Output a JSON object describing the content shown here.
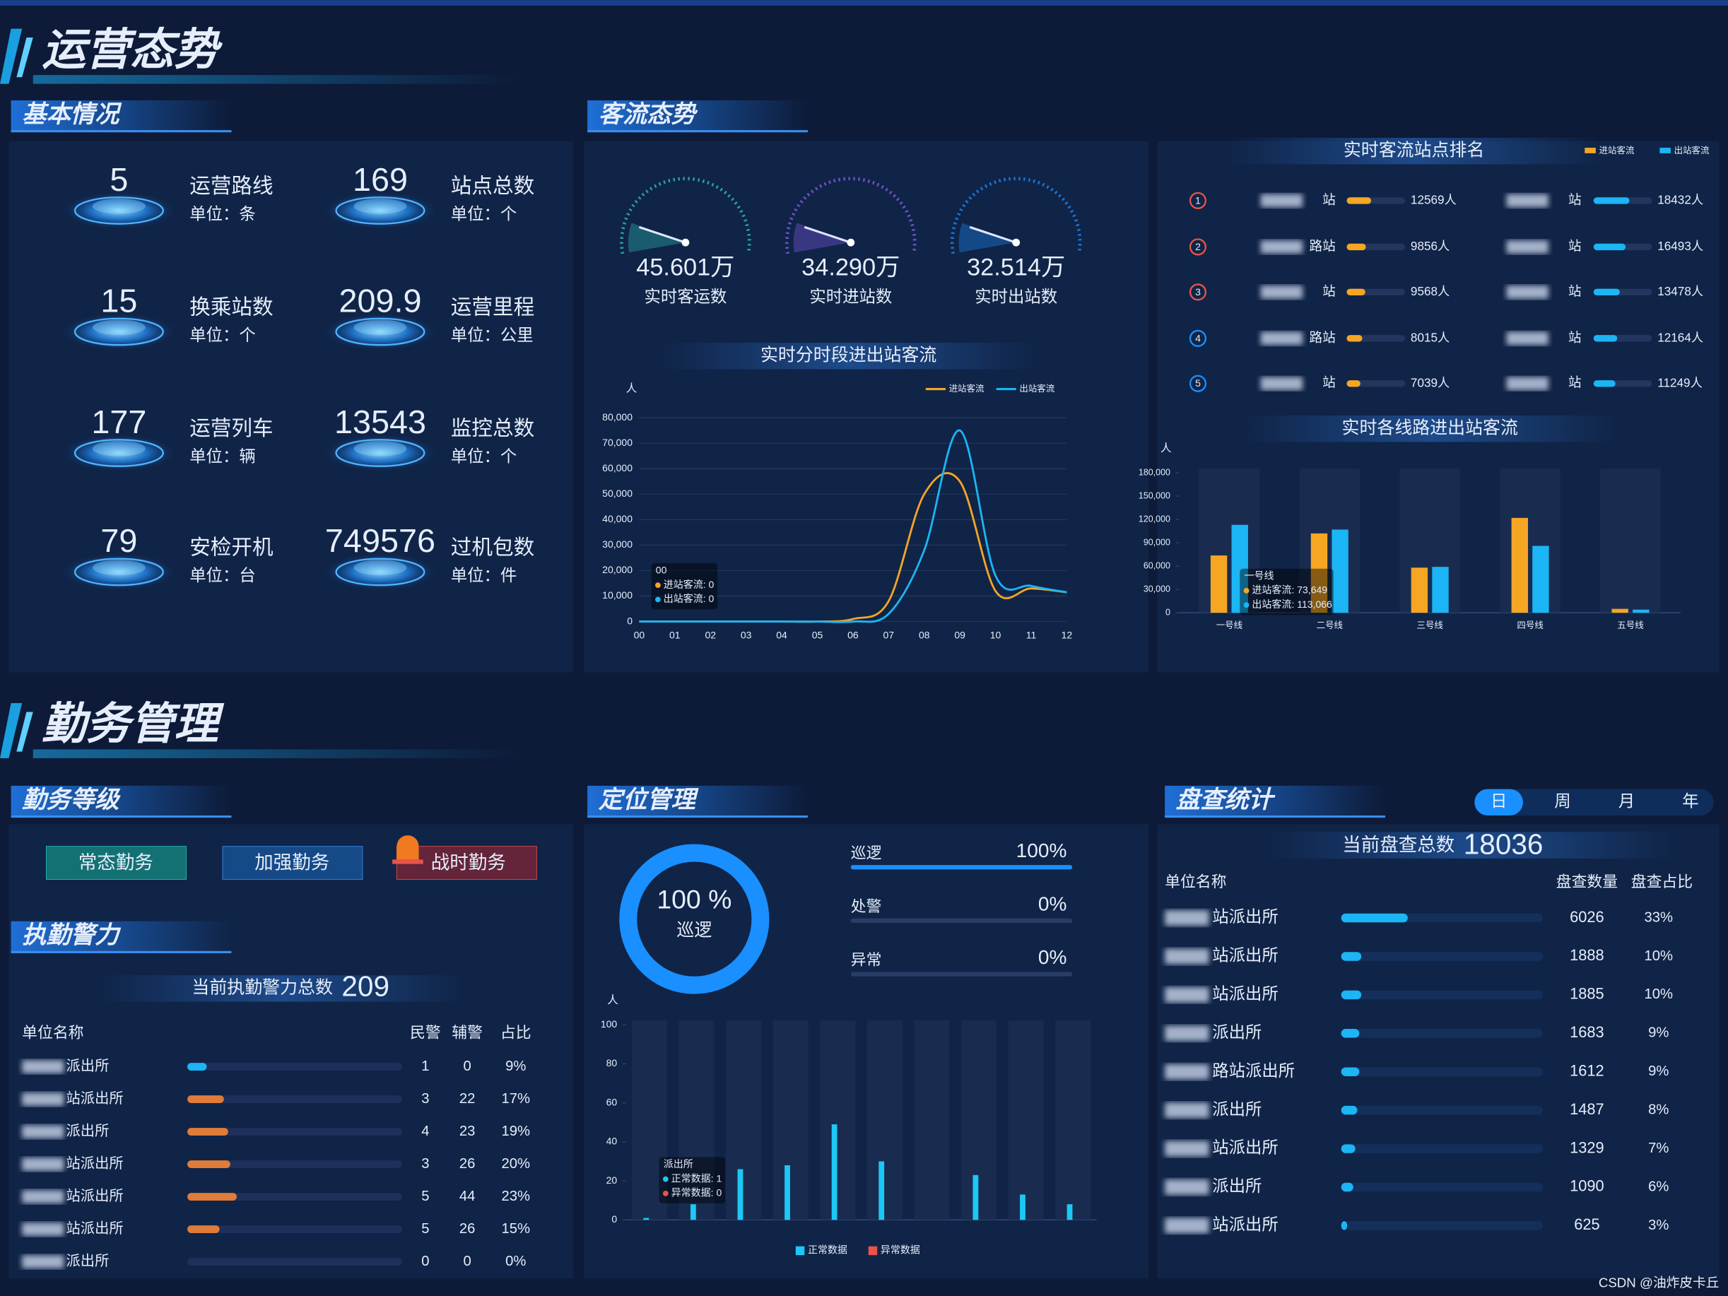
{
  "header": {
    "title": "运营态势"
  },
  "basic": {
    "title": "基本情况",
    "items": [
      {
        "value": 5,
        "name": "运营路线",
        "unit": "单位：条"
      },
      {
        "value": 169,
        "name": "站点总数",
        "unit": "单位：个"
      },
      {
        "value": 15,
        "name": "换乘站数",
        "unit": "单位：个"
      },
      {
        "value": 209.9,
        "name": "运营里程",
        "unit": "单位：公里"
      },
      {
        "value": 177,
        "name": "运营列车",
        "unit": "单位：辆"
      },
      {
        "value": 13543,
        "name": "监控总数",
        "unit": "单位：个"
      },
      {
        "value": 79,
        "name": "安检开机",
        "unit": "单位：台"
      },
      {
        "value": 749576,
        "name": "过机包数",
        "unit": "单位：件"
      }
    ]
  },
  "flow": {
    "title": "客流态势",
    "gauges": [
      {
        "value": "45.601万",
        "name": "实时客运数"
      },
      {
        "value": "34.290万",
        "name": "实时进站数"
      },
      {
        "value": "32.514万",
        "name": "实时出站数"
      }
    ]
  },
  "chart_data": [
    {
      "type": "line",
      "title": "实时分时段进出站客流",
      "y_label": "人",
      "categories": [
        "00",
        "01",
        "02",
        "03",
        "04",
        "05",
        "06",
        "07",
        "08",
        "09",
        "10",
        "11",
        "12"
      ],
      "series": [
        {
          "name": "进站客流",
          "color": "#f5a623",
          "values": [
            0,
            0,
            0,
            0,
            0,
            0,
            1000,
            8000,
            50000,
            55000,
            12000,
            13000,
            11500
          ]
        },
        {
          "name": "出站客流",
          "color": "#1cb5f5",
          "values": [
            0,
            0,
            0,
            0,
            0,
            0,
            0,
            3000,
            28000,
            75000,
            18000,
            14000,
            11500
          ]
        }
      ],
      "ylim": [
        0,
        80000
      ],
      "yticks": [
        0,
        {
          "value": 10000,
          "label": "10,000"
        },
        {
          "value": 20000,
          "label": "20,000"
        },
        {
          "value": 30000,
          "label": "30,000"
        },
        {
          "value": 40000,
          "label": "40,000"
        },
        {
          "value": 50000,
          "label": "50,000"
        },
        {
          "value": 60000,
          "label": "60,000"
        },
        {
          "value": 70000,
          "label": "70,000"
        },
        {
          "value": 80000,
          "label": "80,000"
        }
      ],
      "grid": true,
      "tooltip": {
        "title": "00",
        "lines": [
          "进站客流: 0",
          "出站客流: 0"
        ]
      }
    },
    {
      "type": "hbar",
      "title": "实时客流站点排名",
      "ranks": [
        1,
        2,
        3,
        4,
        5
      ],
      "series": [
        {
          "name": "进站客流",
          "color": "#f5a623",
          "categories": [
            "站",
            "路站",
            "站",
            "路站",
            "站"
          ],
          "values": [
            12569,
            9856,
            9568,
            8015,
            7039
          ],
          "value_labels": [
            "12569人",
            "9856人",
            "9568人",
            "8015人",
            "7039人"
          ]
        },
        {
          "name": "出站客流",
          "color": "#1cb5f5",
          "categories": [
            "站",
            "站",
            "站",
            "站",
            "站"
          ],
          "values": [
            18432,
            16493,
            13478,
            12164,
            11249
          ],
          "value_labels": [
            "18432人",
            "16493人",
            "13478人",
            "12164人",
            "11249人"
          ]
        }
      ],
      "xlim": [
        0,
        30000
      ]
    },
    {
      "type": "bar",
      "title": "实时各线路进出站客流",
      "y_label": "人",
      "categories": [
        "一号线",
        "二号线",
        "三号线",
        "四号线",
        "五号线"
      ],
      "series": [
        {
          "color": "#f5a623",
          "values": [
            73649,
            102000,
            58000,
            122000,
            5000
          ]
        },
        {
          "color": "#1cb5f5",
          "values": [
            113066,
            107000,
            59000,
            86000,
            4000
          ]
        }
      ],
      "ylim": [
        0,
        180000
      ],
      "yticks": [
        0,
        {
          "value": 30000,
          "label": "30,000"
        },
        {
          "value": 60000,
          "label": "60,000"
        },
        {
          "value": 90000,
          "label": "90,000"
        },
        {
          "value": 120000,
          "label": "120,000"
        },
        {
          "value": 150000,
          "label": "150,000"
        },
        {
          "value": 180000,
          "label": "180,000"
        }
      ],
      "tooltip": {
        "title": "一号线",
        "lines": [
          "进站客流: 73,649",
          "出站客流: 113,066"
        ]
      }
    },
    {
      "type": "bar",
      "y_label": "人",
      "categories": [
        null,
        null,
        null,
        null,
        null,
        null,
        null,
        null,
        null,
        null
      ],
      "series": [
        {
          "name": "正常数据",
          "color": "#1cc8f5",
          "values": [
            1,
            8,
            26,
            28,
            49,
            30,
            0,
            23,
            13,
            8
          ]
        },
        {
          "name": "异常数据",
          "color": "#e8534a",
          "values": [
            0,
            0,
            0,
            0,
            0,
            0,
            0,
            0,
            0,
            0
          ]
        }
      ],
      "ylim": [
        0,
        100
      ],
      "yticks": [
        0,
        20,
        40,
        60,
        80,
        100
      ],
      "tooltip": {
        "title": "派出所",
        "lines": [
          "正常数据: 1",
          "异常数据: 0"
        ]
      }
    }
  ],
  "duty": {
    "section": "勤务管理",
    "level_title": "勤务等级",
    "levels": [
      "常态勤务",
      "加强勤务",
      "战时勤务"
    ],
    "force_title": "执勤警力",
    "total_label": "当前执勤警力总数",
    "total": 209,
    "columns": [
      "单位名称",
      "民警",
      "辅警",
      "占比"
    ],
    "rows": [
      {
        "name": "派出所",
        "police": 1,
        "aux": 0,
        "share": 9,
        "share_label": "9%"
      },
      {
        "name": "站派出所",
        "police": 3,
        "aux": 22,
        "share": 17,
        "share_label": "17%"
      },
      {
        "name": "派出所",
        "police": 4,
        "aux": 23,
        "share": 19,
        "share_label": "19%"
      },
      {
        "name": "站派出所",
        "police": 3,
        "aux": 26,
        "share": 20,
        "share_label": "20%"
      },
      {
        "name": "站派出所",
        "police": 5,
        "aux": 44,
        "share": 23,
        "share_label": "23%"
      },
      {
        "name": "站派出所",
        "police": 5,
        "aux": 26,
        "share": 15,
        "share_label": "15%"
      },
      {
        "name": "派出所",
        "police": 0,
        "aux": 0,
        "share": 0,
        "share_label": "0%"
      }
    ]
  },
  "position": {
    "title": "定位管理",
    "donut": {
      "value": 100,
      "label": "100 %",
      "name": "巡逻"
    },
    "bars": [
      {
        "name": "巡逻",
        "value": 100,
        "label": "100%"
      },
      {
        "name": "处警",
        "value": 0,
        "label": "0%"
      },
      {
        "name": "异常",
        "value": 0,
        "label": "0%"
      }
    ]
  },
  "check": {
    "title": "盘查统计",
    "tabs": [
      "日",
      "周",
      "月",
      "年"
    ],
    "active_tab": 0,
    "total_label": "当前盘查总数",
    "total": 18036,
    "columns": [
      "单位名称",
      "盘查数量",
      "盘查占比"
    ],
    "rows": [
      {
        "name": "站派出所",
        "count": 6026,
        "share": 33,
        "share_label": "33%"
      },
      {
        "name": "站派出所",
        "count": 1888,
        "share": 10,
        "share_label": "10%"
      },
      {
        "name": "站派出所",
        "count": 1885,
        "share": 10,
        "share_label": "10%"
      },
      {
        "name": "派出所",
        "count": 1683,
        "share": 9,
        "share_label": "9%"
      },
      {
        "name": "路站派出所",
        "count": 1612,
        "share": 9,
        "share_label": "9%"
      },
      {
        "name": "派出所",
        "count": 1487,
        "share": 8,
        "share_label": "8%"
      },
      {
        "name": "站派出所",
        "count": 1329,
        "share": 7,
        "share_label": "7%"
      },
      {
        "name": "派出所",
        "count": 1090,
        "share": 6,
        "share_label": "6%"
      },
      {
        "name": "站派出所",
        "count": 625,
        "share": 3,
        "share_label": "3%"
      }
    ]
  },
  "watermark": "CSDN @油炸皮卡丘"
}
